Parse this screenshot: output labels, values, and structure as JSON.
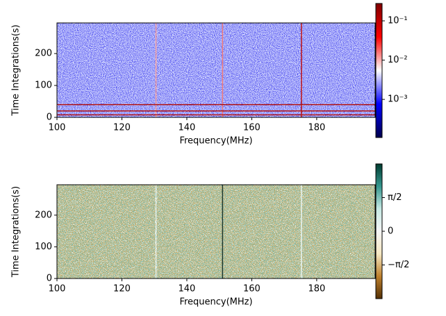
{
  "chart_data": [
    {
      "type": "heatmap",
      "xlabel": "Frequency(MHz)",
      "ylabel": "Time Integrations(s)",
      "xlim": [
        100,
        198
      ],
      "xticks": [
        100,
        120,
        140,
        160,
        180
      ],
      "ylim": [
        0,
        296
      ],
      "yticks": [
        0,
        100,
        200
      ],
      "colormap": [
        "#00004c",
        "#0000ff",
        "#ffffff",
        "#ff0000",
        "#7f0000"
      ],
      "colorbar": {
        "scale": "log",
        "lim": [
          0.000107,
          0.277
        ],
        "ticks": [
          {
            "value": 0.001,
            "label": "10⁻³"
          },
          {
            "value": 0.01,
            "label": "10⁻²"
          },
          {
            "value": 0.1,
            "label": "10⁻¹"
          }
        ]
      },
      "vertical_lines": [
        {
          "x": 130.5,
          "color": "#f4a0a0"
        },
        {
          "x": 151,
          "color": "#f07a7a"
        },
        {
          "x": 175.3,
          "color": "#c01010"
        }
      ],
      "horizontal_lines": [
        {
          "y": 40,
          "color": "#b01010"
        },
        {
          "y": 20,
          "color": "#b01010"
        },
        {
          "y": 8,
          "color": "#b01010"
        }
      ]
    },
    {
      "type": "heatmap",
      "xlabel": "Frequency(MHz)",
      "ylabel": "Time Integrations(s)",
      "xlim": [
        100,
        198
      ],
      "xticks": [
        100,
        120,
        140,
        160,
        180
      ],
      "ylim": [
        0,
        296
      ],
      "yticks": [
        0,
        100,
        200
      ],
      "colormap": [
        "#543005",
        "#bf812d",
        "#f6e8c3",
        "#f5f5f5",
        "#c7eae5",
        "#35978f",
        "#003c30"
      ],
      "colorbar": {
        "scale": "linear",
        "lim": [
          -3.1416,
          3.1416
        ],
        "ticks": [
          {
            "value": -1.5708,
            "label": "−π/2"
          },
          0,
          {
            "value": 1.5708,
            "label": "π/2"
          }
        ]
      },
      "vertical_lines": [
        {
          "x": 130.5,
          "color": "#e8f4f0"
        },
        {
          "x": 151,
          "color": "#1e3a30"
        },
        {
          "x": 175.3,
          "color": "#e8f4f0"
        }
      ],
      "horizontal_lines": []
    }
  ]
}
